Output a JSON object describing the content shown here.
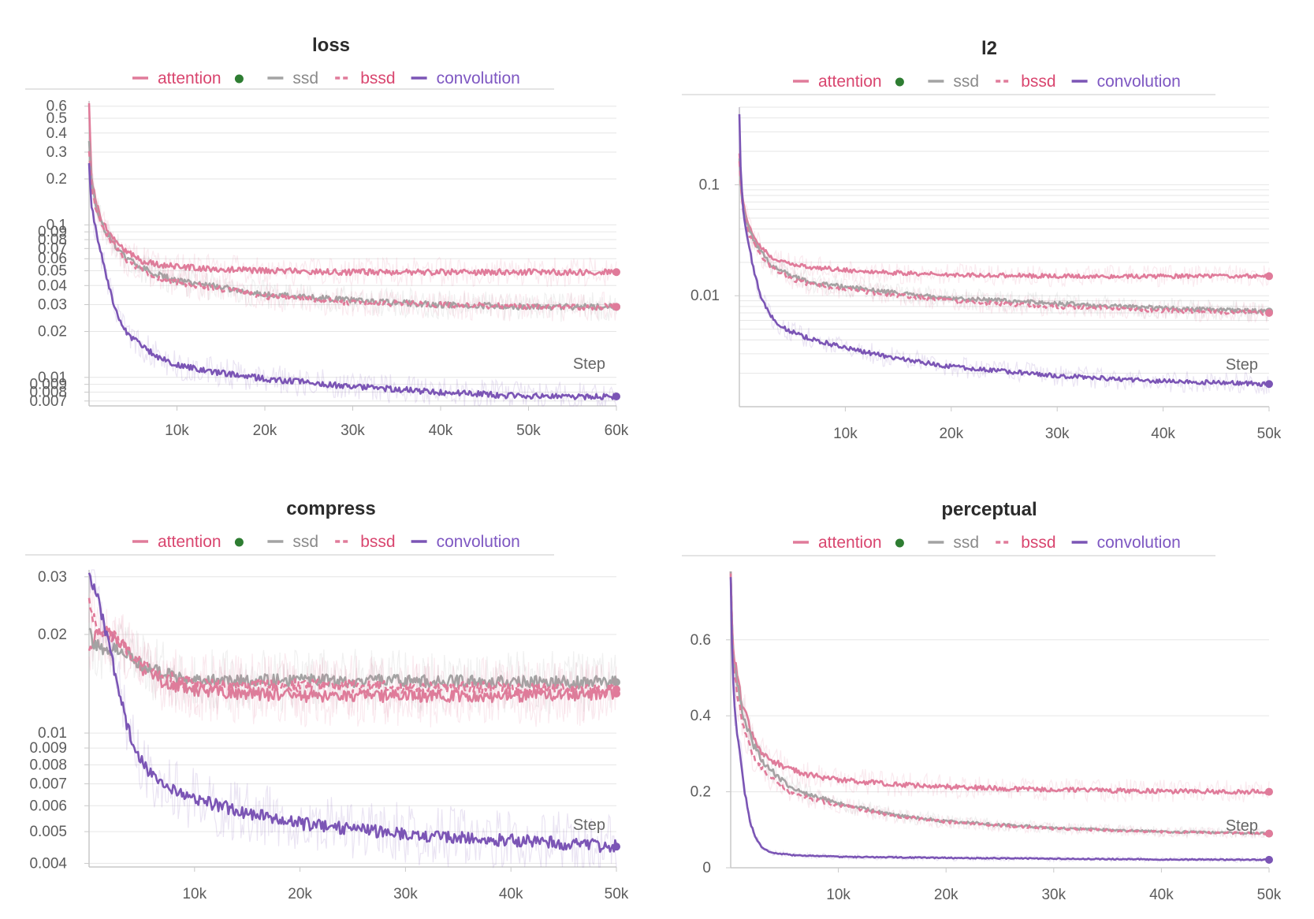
{
  "colors": {
    "attention": "#e07b9a",
    "attention_dot": "#2e7d32",
    "ssd": "#a3a3a3",
    "bssd": "#e07b9a",
    "convolution": "#7b55b5",
    "grid": "#e6e6e6",
    "axis": "#c9c9c9"
  },
  "chart_data": [
    {
      "type": "line",
      "title": "loss",
      "xlabel": "Step",
      "ylabel": "",
      "yscale": "log",
      "xlim": [
        0,
        60000
      ],
      "ylim": [
        0.0065,
        0.65
      ],
      "x_ticks": [
        {
          "v": 10000,
          "label": "10k"
        },
        {
          "v": 20000,
          "label": "20k"
        },
        {
          "v": 30000,
          "label": "30k"
        },
        {
          "v": 40000,
          "label": "40k"
        },
        {
          "v": 50000,
          "label": "50k"
        },
        {
          "v": 60000,
          "label": "60k"
        }
      ],
      "y_ticks": [
        {
          "v": 0.6,
          "label": "0.6"
        },
        {
          "v": 0.5,
          "label": "0.5"
        },
        {
          "v": 0.4,
          "label": "0.4"
        },
        {
          "v": 0.3,
          "label": "0.3"
        },
        {
          "v": 0.2,
          "label": "0.2"
        },
        {
          "v": 0.1,
          "label": "0.1"
        },
        {
          "v": 0.09,
          "label": "0.09"
        },
        {
          "v": 0.08,
          "label": "0.08"
        },
        {
          "v": 0.07,
          "label": "0.07"
        },
        {
          "v": 0.06,
          "label": "0.06"
        },
        {
          "v": 0.05,
          "label": "0.05"
        },
        {
          "v": 0.04,
          "label": "0.04"
        },
        {
          "v": 0.03,
          "label": "0.03"
        },
        {
          "v": 0.02,
          "label": "0.02"
        },
        {
          "v": 0.01,
          "label": "0.01"
        },
        {
          "v": 0.009,
          "label": "0.009"
        },
        {
          "v": 0.008,
          "label": "0.008"
        },
        {
          "v": 0.007,
          "label": "0.007"
        }
      ],
      "grid": true,
      "legend": "top-center",
      "series": [
        {
          "name": "attention",
          "color": "#e07b9a",
          "dash": false,
          "x": [
            0,
            300,
            800,
            1500,
            2500,
            4000,
            6000,
            8000,
            10000,
            15000,
            20000,
            30000,
            40000,
            50000,
            60000
          ],
          "y": [
            0.62,
            0.2,
            0.14,
            0.105,
            0.085,
            0.068,
            0.058,
            0.055,
            0.053,
            0.051,
            0.05,
            0.049,
            0.049,
            0.049,
            0.049
          ]
        },
        {
          "name": "ssd",
          "color": "#a3a3a3",
          "dash": false,
          "x": [
            0,
            300,
            800,
            1500,
            2500,
            4000,
            6000,
            8000,
            10000,
            15000,
            20000,
            30000,
            40000,
            50000,
            60000
          ],
          "y": [
            0.35,
            0.19,
            0.13,
            0.1,
            0.08,
            0.062,
            0.052,
            0.047,
            0.043,
            0.039,
            0.035,
            0.032,
            0.03,
            0.029,
            0.029
          ]
        },
        {
          "name": "bssd",
          "color": "#e07b9a",
          "dash": true,
          "x": [
            0,
            300,
            800,
            1500,
            2500,
            4000,
            6000,
            8000,
            10000,
            15000,
            20000,
            30000,
            40000,
            50000,
            60000
          ],
          "y": [
            0.3,
            0.18,
            0.125,
            0.098,
            0.078,
            0.06,
            0.05,
            0.045,
            0.042,
            0.038,
            0.034,
            0.031,
            0.03,
            0.029,
            0.029
          ]
        },
        {
          "name": "convolution",
          "color": "#7b55b5",
          "dash": false,
          "x": [
            0,
            300,
            800,
            1500,
            2500,
            3500,
            4500,
            6000,
            8000,
            10000,
            15000,
            20000,
            30000,
            40000,
            50000,
            60000
          ],
          "y": [
            0.25,
            0.13,
            0.09,
            0.06,
            0.035,
            0.023,
            0.019,
            0.016,
            0.0135,
            0.012,
            0.0107,
            0.0098,
            0.0087,
            0.008,
            0.0075,
            0.0075
          ]
        }
      ]
    },
    {
      "type": "line",
      "title": "l2",
      "xlabel": "Step",
      "ylabel": "",
      "yscale": "log",
      "xlim": [
        0,
        50000
      ],
      "ylim": [
        0.001,
        0.5
      ],
      "x_ticks": [
        {
          "v": 10000,
          "label": "10k"
        },
        {
          "v": 20000,
          "label": "20k"
        },
        {
          "v": 30000,
          "label": "30k"
        },
        {
          "v": 40000,
          "label": "40k"
        },
        {
          "v": 50000,
          "label": "50k"
        }
      ],
      "y_ticks": [
        {
          "v": 0.1,
          "label": "0.1"
        },
        {
          "v": 0.01,
          "label": "0.01"
        }
      ],
      "grid": true,
      "legend": "top-center",
      "series": [
        {
          "name": "attention",
          "color": "#e07b9a",
          "dash": false,
          "x": [
            0,
            200,
            500,
            1000,
            2000,
            3000,
            5000,
            7000,
            10000,
            15000,
            20000,
            30000,
            40000,
            50000
          ],
          "y": [
            0.2,
            0.09,
            0.06,
            0.04,
            0.028,
            0.022,
            0.019,
            0.018,
            0.017,
            0.016,
            0.0155,
            0.015,
            0.015,
            0.015
          ]
        },
        {
          "name": "ssd",
          "color": "#a3a3a3",
          "dash": false,
          "x": [
            0,
            200,
            500,
            1000,
            2000,
            3000,
            5000,
            7000,
            10000,
            15000,
            20000,
            30000,
            40000,
            50000
          ],
          "y": [
            0.18,
            0.08,
            0.055,
            0.037,
            0.025,
            0.019,
            0.015,
            0.013,
            0.012,
            0.0105,
            0.0095,
            0.0085,
            0.0077,
            0.0072
          ]
        },
        {
          "name": "bssd",
          "color": "#e07b9a",
          "dash": true,
          "x": [
            0,
            200,
            500,
            1000,
            2000,
            3000,
            5000,
            7000,
            10000,
            15000,
            20000,
            30000,
            40000,
            50000
          ],
          "y": [
            0.17,
            0.075,
            0.05,
            0.034,
            0.023,
            0.018,
            0.014,
            0.0125,
            0.0115,
            0.01,
            0.009,
            0.008,
            0.0074,
            0.007
          ]
        },
        {
          "name": "convolution",
          "color": "#7b55b5",
          "dash": false,
          "x": [
            0,
            100,
            300,
            600,
            1000,
            1500,
            2000,
            3000,
            4000,
            6000,
            8000,
            10000,
            15000,
            20000,
            30000,
            40000,
            50000
          ],
          "y": [
            0.45,
            0.15,
            0.07,
            0.04,
            0.025,
            0.015,
            0.01,
            0.0065,
            0.0052,
            0.0043,
            0.0038,
            0.0034,
            0.0027,
            0.0023,
            0.0019,
            0.0017,
            0.0016
          ]
        }
      ]
    },
    {
      "type": "line",
      "title": "compress",
      "xlabel": "Step",
      "ylabel": "",
      "yscale": "log",
      "xlim": [
        0,
        50000
      ],
      "ylim": [
        0.0039,
        0.0315
      ],
      "x_ticks": [
        {
          "v": 10000,
          "label": "10k"
        },
        {
          "v": 20000,
          "label": "20k"
        },
        {
          "v": 30000,
          "label": "30k"
        },
        {
          "v": 40000,
          "label": "40k"
        },
        {
          "v": 50000,
          "label": "50k"
        }
      ],
      "y_ticks": [
        {
          "v": 0.03,
          "label": "0.03"
        },
        {
          "v": 0.02,
          "label": "0.02"
        },
        {
          "v": 0.01,
          "label": "0.01"
        },
        {
          "v": 0.009,
          "label": "0.009"
        },
        {
          "v": 0.008,
          "label": "0.008"
        },
        {
          "v": 0.007,
          "label": "0.007"
        },
        {
          "v": 0.006,
          "label": "0.006"
        },
        {
          "v": 0.005,
          "label": "0.005"
        },
        {
          "v": 0.004,
          "label": "0.004"
        }
      ],
      "grid": true,
      "legend": "top-center",
      "series": [
        {
          "name": "attention",
          "color": "#e07b9a",
          "dash": false,
          "x": [
            0,
            300,
            800,
            1500,
            2500,
            3500,
            5000,
            7000,
            10000,
            15000,
            20000,
            30000,
            40000,
            50000
          ],
          "y": [
            0.018,
            0.019,
            0.02,
            0.0205,
            0.0195,
            0.018,
            0.0158,
            0.0143,
            0.0135,
            0.0132,
            0.013,
            0.013,
            0.013,
            0.0132
          ]
        },
        {
          "name": "ssd",
          "color": "#a3a3a3",
          "dash": false,
          "x": [
            0,
            300,
            800,
            1500,
            2000,
            2500,
            3500,
            5000,
            7000,
            10000,
            15000,
            20000,
            30000,
            40000,
            50000
          ],
          "y": [
            0.021,
            0.019,
            0.0185,
            0.0175,
            0.0178,
            0.0182,
            0.0175,
            0.0162,
            0.0152,
            0.0147,
            0.0145,
            0.0145,
            0.0144,
            0.0143,
            0.0143
          ]
        },
        {
          "name": "bssd",
          "color": "#e07b9a",
          "dash": true,
          "x": [
            0,
            300,
            800,
            1500,
            2500,
            3500,
            5000,
            7000,
            10000,
            15000,
            20000,
            30000,
            40000,
            50000
          ],
          "y": [
            0.026,
            0.023,
            0.021,
            0.02,
            0.0195,
            0.018,
            0.0162,
            0.0148,
            0.0142,
            0.014,
            0.014,
            0.0138,
            0.0137,
            0.0136
          ]
        },
        {
          "name": "convolution",
          "color": "#7b55b5",
          "dash": false,
          "x": [
            0,
            300,
            800,
            1500,
            2500,
            3500,
            4500,
            5500,
            7000,
            10000,
            15000,
            20000,
            30000,
            40000,
            50000
          ],
          "y": [
            0.031,
            0.029,
            0.026,
            0.021,
            0.015,
            0.0108,
            0.0088,
            0.0077,
            0.0069,
            0.0063,
            0.0057,
            0.0053,
            0.0049,
            0.0047,
            0.0045
          ]
        }
      ]
    },
    {
      "type": "line",
      "title": "perceptual",
      "xlabel": "Step",
      "ylabel": "",
      "yscale": "linear",
      "xlim": [
        0,
        50000
      ],
      "ylim": [
        0,
        0.78
      ],
      "x_ticks": [
        {
          "v": 10000,
          "label": "10k"
        },
        {
          "v": 20000,
          "label": "20k"
        },
        {
          "v": 30000,
          "label": "30k"
        },
        {
          "v": 40000,
          "label": "40k"
        },
        {
          "v": 50000,
          "label": "50k"
        }
      ],
      "y_ticks": [
        {
          "v": 0.6,
          "label": "0.6"
        },
        {
          "v": 0.4,
          "label": "0.4"
        },
        {
          "v": 0.2,
          "label": "0.2"
        },
        {
          "v": 0,
          "label": "0"
        }
      ],
      "grid": true,
      "legend": "top-center",
      "series": [
        {
          "name": "attention",
          "color": "#e07b9a",
          "dash": false,
          "x": [
            0,
            200,
            600,
            1200,
            2000,
            3000,
            4000,
            5500,
            7000,
            10000,
            15000,
            20000,
            30000,
            40000,
            50000
          ],
          "y": [
            0.77,
            0.58,
            0.5,
            0.42,
            0.35,
            0.3,
            0.28,
            0.26,
            0.245,
            0.232,
            0.22,
            0.213,
            0.205,
            0.202,
            0.2
          ]
        },
        {
          "name": "ssd",
          "color": "#a3a3a3",
          "dash": false,
          "x": [
            0,
            200,
            600,
            1200,
            2000,
            3000,
            4000,
            5500,
            7000,
            10000,
            15000,
            20000,
            30000,
            40000,
            50000
          ],
          "y": [
            0.77,
            0.57,
            0.48,
            0.4,
            0.33,
            0.28,
            0.25,
            0.215,
            0.195,
            0.17,
            0.14,
            0.122,
            0.105,
            0.095,
            0.09
          ]
        },
        {
          "name": "bssd",
          "color": "#e07b9a",
          "dash": true,
          "x": [
            0,
            200,
            600,
            1200,
            2000,
            3000,
            4000,
            5500,
            7000,
            10000,
            15000,
            20000,
            30000,
            40000,
            50000
          ],
          "y": [
            0.76,
            0.55,
            0.46,
            0.37,
            0.3,
            0.26,
            0.23,
            0.2,
            0.185,
            0.165,
            0.138,
            0.12,
            0.103,
            0.094,
            0.09
          ]
        },
        {
          "name": "convolution",
          "color": "#7b55b5",
          "dash": false,
          "x": [
            0,
            200,
            500,
            900,
            1300,
            1800,
            2300,
            3000,
            4000,
            6000,
            10000,
            20000,
            30000,
            40000,
            50000
          ],
          "y": [
            0.75,
            0.5,
            0.38,
            0.3,
            0.2,
            0.12,
            0.08,
            0.05,
            0.038,
            0.033,
            0.029,
            0.026,
            0.024,
            0.022,
            0.021
          ]
        }
      ]
    }
  ]
}
